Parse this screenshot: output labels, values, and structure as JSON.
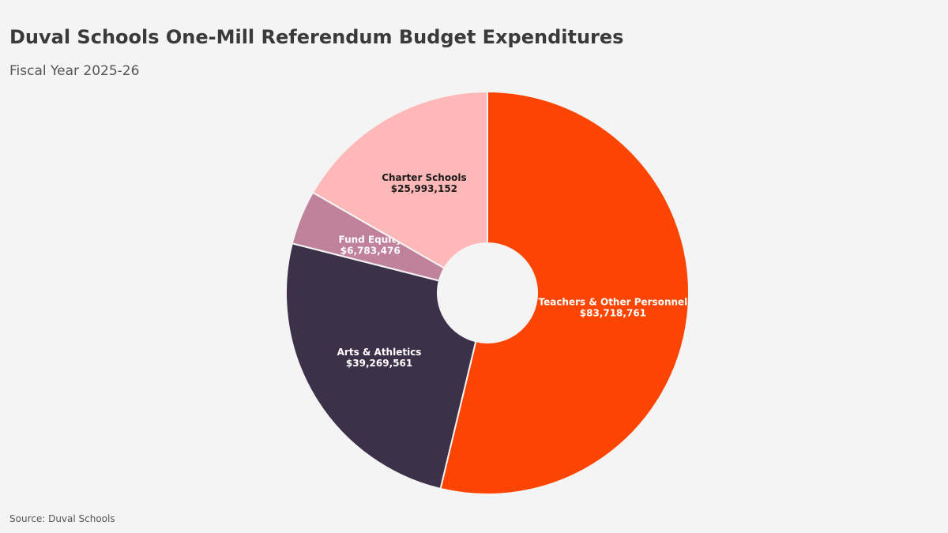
{
  "chart_data": {
    "type": "pie",
    "donut": true,
    "title": "Duval Schools One-Mill Referendum Budget Expenditures",
    "subtitle": "Fiscal Year 2025-26",
    "source": "Source: Duval Schools",
    "categories": [
      "Teachers & Other Personnel",
      "Arts & Athletics",
      "Fund Equity",
      "Charter Schools"
    ],
    "values": [
      83718761,
      39269561,
      6783476,
      25993152
    ],
    "value_labels": [
      "$83,718,761",
      "$39,269,561",
      "$6,783,476",
      "$25,993,152"
    ],
    "colors": [
      "#fc4502",
      "#3d3149",
      "#c0819b",
      "#ffb8b8"
    ],
    "label_colors": [
      "#ffffff",
      "#ffffff",
      "#ffffff",
      "#1a1a1a"
    ]
  }
}
